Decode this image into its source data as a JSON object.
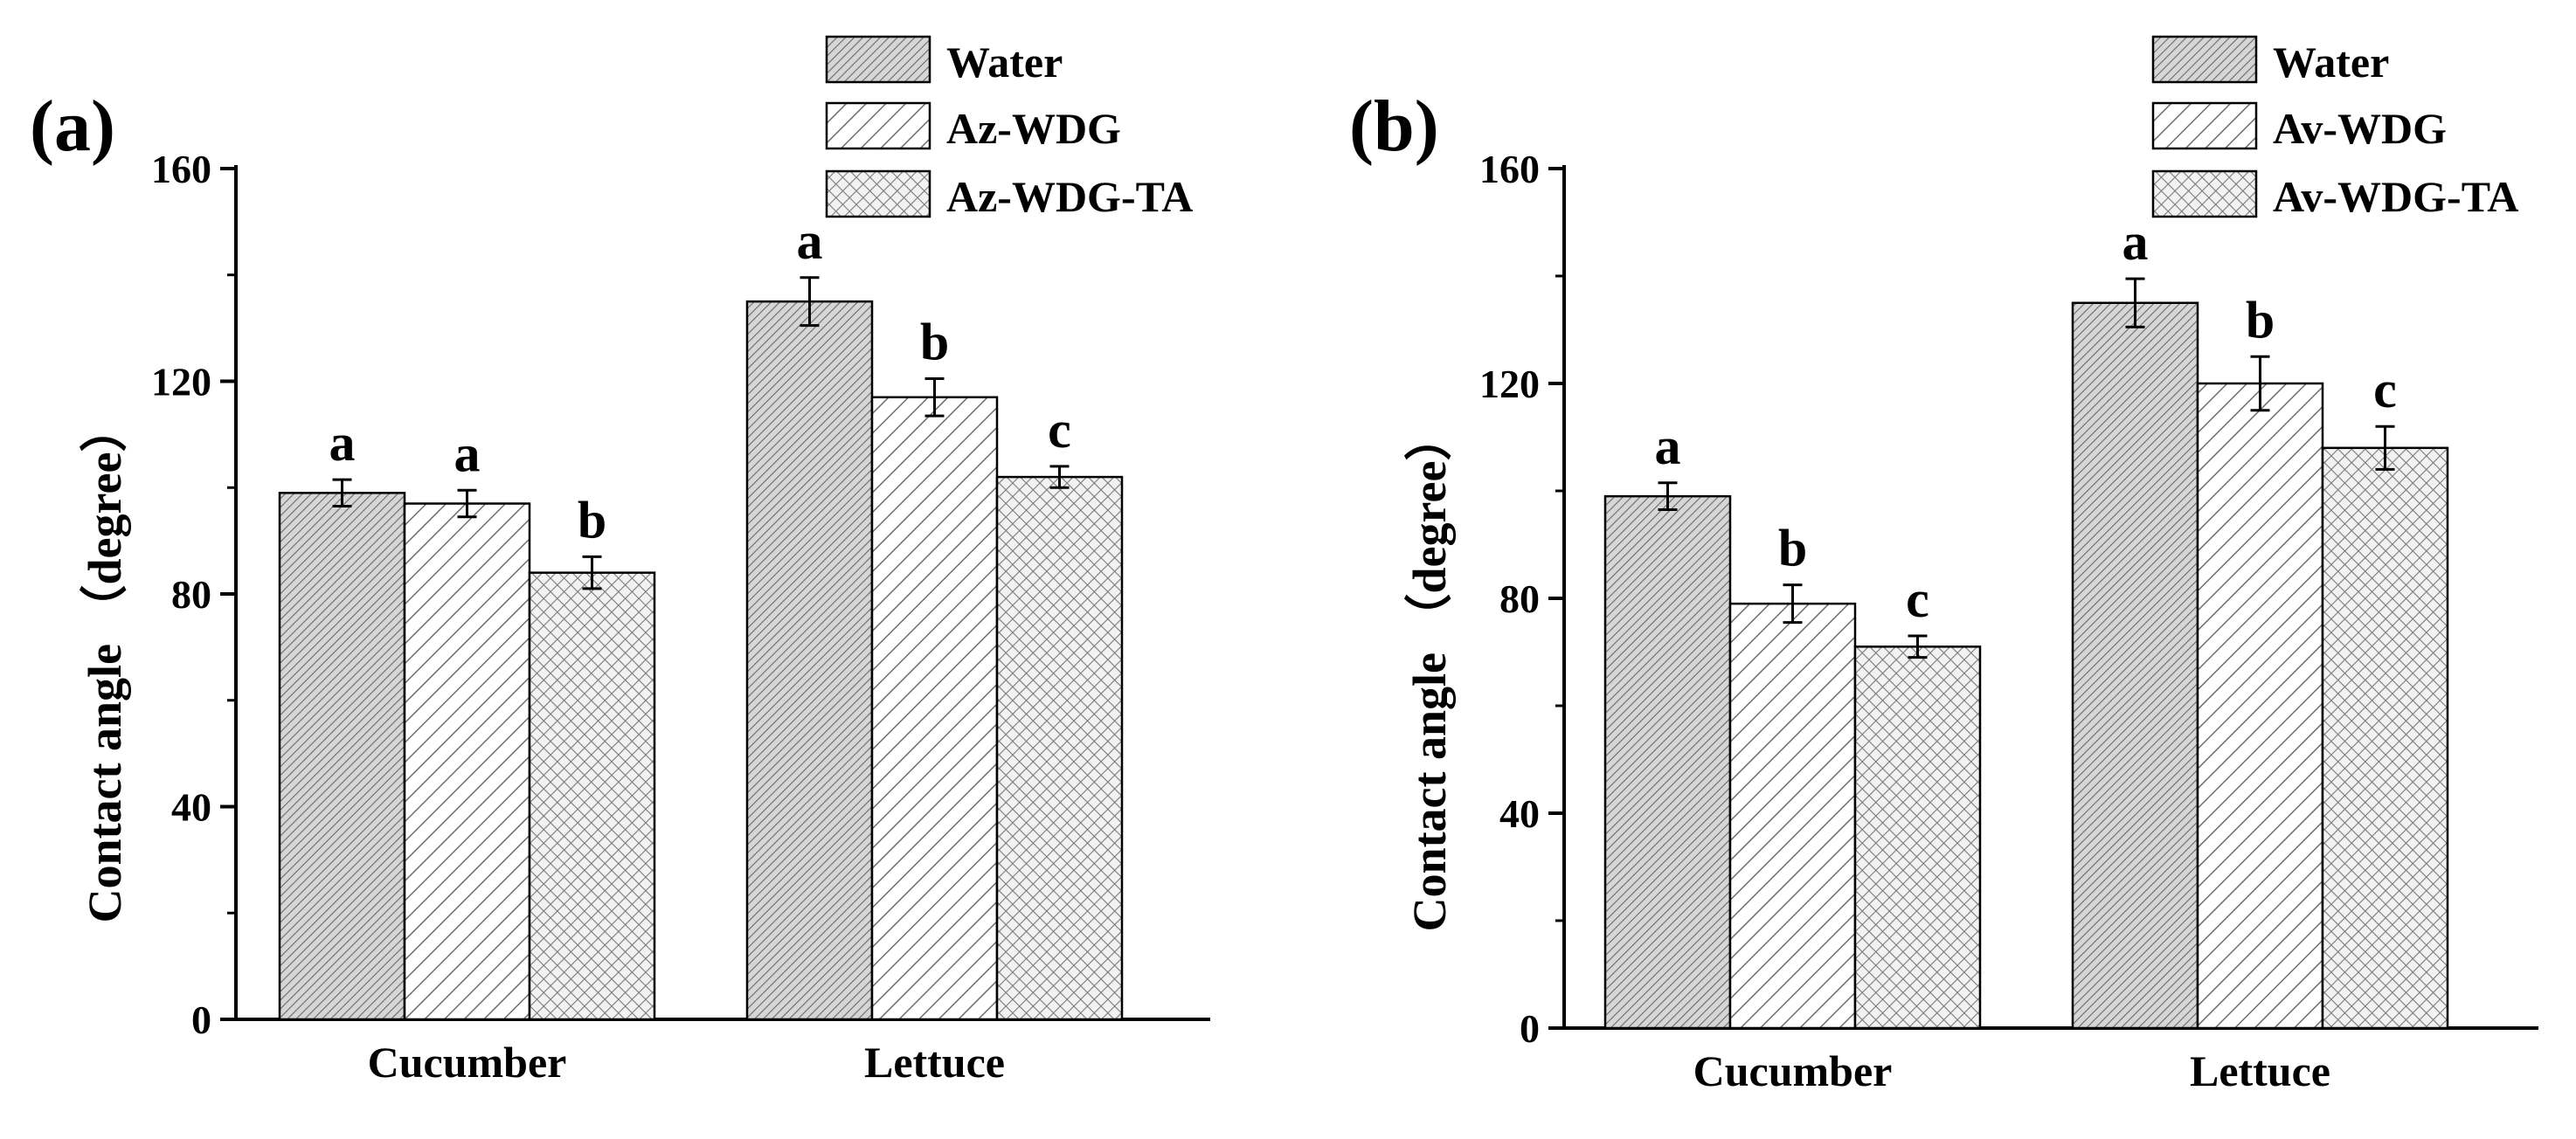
{
  "chart_data": [
    {
      "type": "bar",
      "panel_label": "(a)",
      "categories": [
        "Cucumber",
        "Lettuce"
      ],
      "series": [
        {
          "name": "Water",
          "pattern": "dense",
          "values": [
            99,
            135
          ],
          "errors": [
            2.5,
            4.5
          ],
          "letters": [
            "a",
            "a"
          ]
        },
        {
          "name": "Az-WDG",
          "pattern": "diagonal",
          "values": [
            97,
            117
          ],
          "errors": [
            2.5,
            3.5
          ],
          "letters": [
            "a",
            "b"
          ]
        },
        {
          "name": "Az-WDG-TA",
          "pattern": "crosshatch",
          "values": [
            84,
            102
          ],
          "errors": [
            3,
            2
          ]
        }
      ],
      "ylabel": "Contact angle （degree）",
      "xlabel": "",
      "ylim": [
        0,
        160
      ],
      "yticks": [
        "0",
        "40",
        "80",
        "120",
        "160"
      ],
      "legend_position": "top-right"
    },
    {
      "type": "bar",
      "panel_label": "(b)",
      "categories": [
        "Cucumber",
        "Lettuce"
      ],
      "series": [
        {
          "name": "Water",
          "pattern": "dense",
          "values": [
            99,
            135
          ],
          "errors": [
            2.5,
            4.5
          ],
          "letters": [
            "a",
            "a"
          ]
        },
        {
          "name": "Av-WDG",
          "pattern": "diagonal",
          "values": [
            79,
            120
          ],
          "errors": [
            3.5,
            5
          ],
          "letters": [
            "b",
            "b"
          ]
        },
        {
          "name": "Av-WDG-TA",
          "pattern": "crosshatch",
          "values": [
            71,
            108
          ],
          "errors": [
            2,
            4
          ]
        }
      ],
      "ylabel": "Contact angle （degree）",
      "xlabel": "",
      "ylim": [
        0,
        160
      ],
      "yticks": [
        "0",
        "40",
        "80",
        "120",
        "160"
      ],
      "legend_position": "top-right"
    }
  ],
  "significance_letters": {
    "a": [
      [
        "a",
        "a"
      ],
      [
        "a",
        "b"
      ],
      [
        "b",
        "c"
      ]
    ],
    "b": [
      [
        "a",
        "a"
      ],
      [
        "b",
        "b"
      ],
      [
        "c",
        "c"
      ]
    ]
  }
}
